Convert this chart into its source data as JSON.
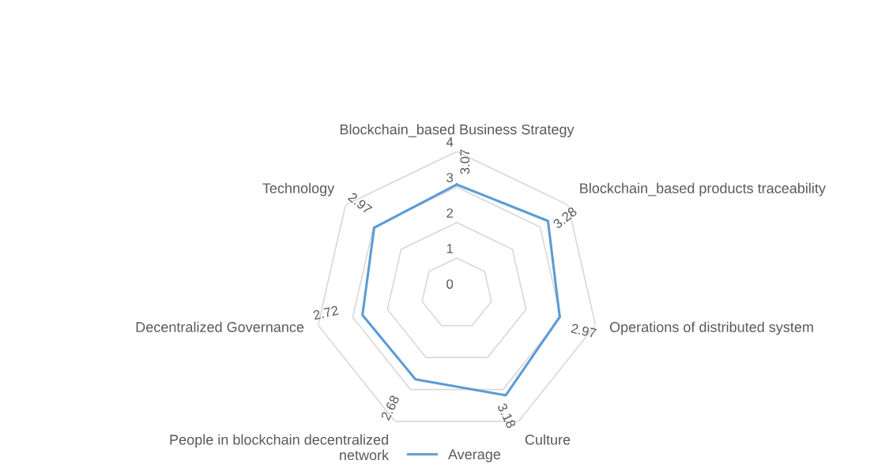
{
  "chart_data": {
    "type": "radar",
    "categories": [
      "Blockchain_based Business Strategy",
      "Blockchain_based products traceability",
      "Operations of distributed system",
      "Culture",
      "People in blockchain decentralized network",
      "Decentralized Governance",
      "Technology"
    ],
    "series": [
      {
        "name": "Average",
        "color": "#5b9bd5",
        "values": [
          3.07,
          3.28,
          2.97,
          3.18,
          2.68,
          2.72,
          2.97
        ]
      }
    ],
    "ylim": [
      0,
      4
    ],
    "yticks": [
      0,
      1,
      2,
      3,
      4
    ],
    "grid": true,
    "data_labels": true,
    "legend": "bottom"
  }
}
